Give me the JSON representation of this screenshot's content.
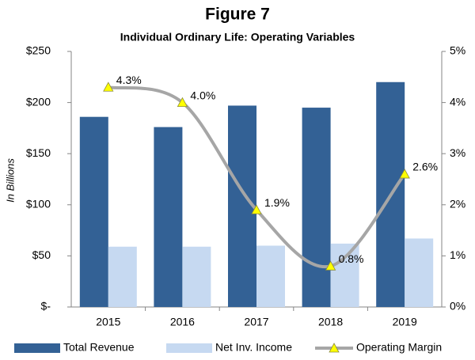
{
  "chart_data": {
    "type": "bar-line",
    "title": "Figure 7",
    "subtitle": "Individual Ordinary Life: Operating Variables",
    "y_label": "In Billions",
    "categories": [
      "2015",
      "2016",
      "2017",
      "2018",
      "2019"
    ],
    "series": [
      {
        "name": "Total Revenue",
        "type": "bar",
        "color": "#336195",
        "values": [
          186,
          176,
          197,
          195,
          220
        ]
      },
      {
        "name": "Net Inv. Income",
        "type": "bar",
        "color": "#c6d9f1",
        "values": [
          59,
          59,
          60,
          62,
          67
        ]
      },
      {
        "name": "Operating Margin",
        "type": "line",
        "axis": "y2",
        "color": "#a6a6a6",
        "marker_color": "#ffff00",
        "values": [
          4.3,
          4.0,
          1.9,
          0.8,
          2.6
        ],
        "value_labels": [
          "4.3%",
          "4.0%",
          "1.9%",
          "0.8%",
          "2.6%"
        ]
      }
    ],
    "ylim": [
      0,
      250
    ],
    "yticks": [
      {
        "value": 0,
        "label": "$-"
      },
      {
        "value": 50,
        "label": "$50"
      },
      {
        "value": 100,
        "label": "$100"
      },
      {
        "value": 150,
        "label": "$150"
      },
      {
        "value": 200,
        "label": "$200"
      },
      {
        "value": 250,
        "label": "$250"
      }
    ],
    "y2lim": [
      0,
      5
    ],
    "y2ticks": [
      {
        "value": 0,
        "label": "0%"
      },
      {
        "value": 1,
        "label": "1%"
      },
      {
        "value": 2,
        "label": "2%"
      },
      {
        "value": 3,
        "label": "3%"
      },
      {
        "value": 4,
        "label": "4%"
      },
      {
        "value": 5,
        "label": "5%"
      }
    ],
    "grid": false,
    "legend": "bottom"
  }
}
